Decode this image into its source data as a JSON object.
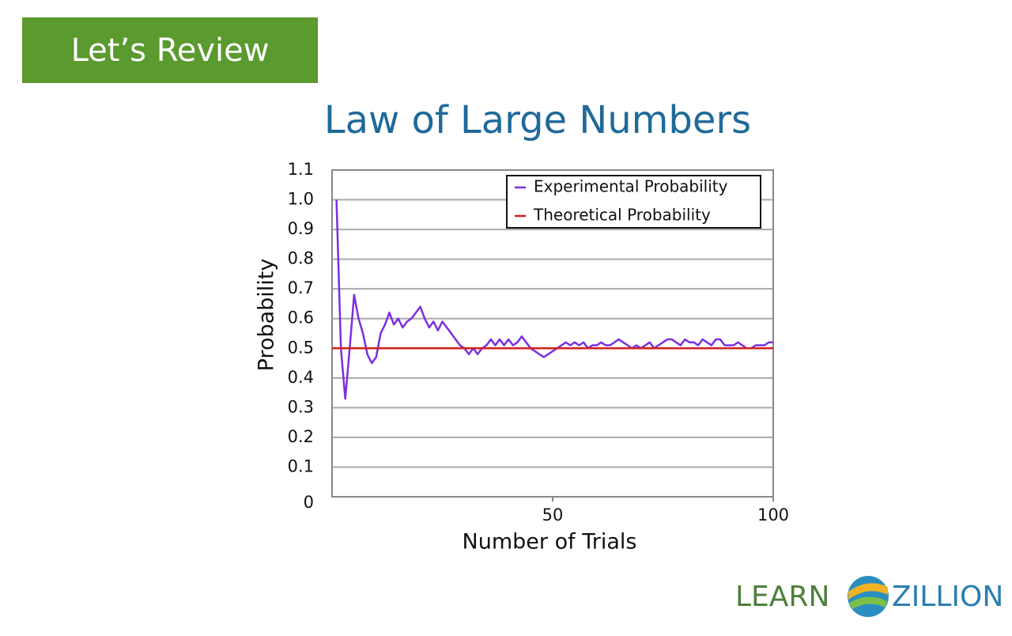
{
  "badge": "Let’s Review",
  "logo": {
    "left": "LEARN",
    "right": "ZILLION"
  },
  "chart_data": {
    "type": "line",
    "title": "Law of Large Numbers",
    "x_label": "Number of Trials",
    "y_label": "Probability",
    "xlim": [
      0,
      100
    ],
    "xticks": [
      50,
      100
    ],
    "ylim": [
      0,
      1.1
    ],
    "yticks": [
      0,
      0.1,
      0.2,
      0.3,
      0.4,
      0.5,
      0.6,
      0.7,
      0.8,
      0.9,
      {
        "value": 1,
        "label": "1.0"
      },
      1.1
    ],
    "grid": true,
    "legend": "top-right",
    "series": [
      {
        "name": "Experimental Probability",
        "color": "#7b2fe0",
        "x": [
          1,
          2,
          3,
          4,
          5,
          6,
          7,
          8,
          9,
          10,
          11,
          12,
          13,
          14,
          15,
          16,
          17,
          18,
          19,
          20,
          21,
          22,
          23,
          24,
          25,
          26,
          27,
          28,
          29,
          30,
          31,
          32,
          33,
          34,
          35,
          36,
          37,
          38,
          39,
          40,
          41,
          42,
          43,
          44,
          45,
          46,
          47,
          48,
          49,
          50,
          51,
          52,
          53,
          54,
          55,
          56,
          57,
          58,
          59,
          60,
          61,
          62,
          63,
          64,
          65,
          66,
          67,
          68,
          69,
          70,
          71,
          72,
          73,
          74,
          75,
          76,
          77,
          78,
          79,
          80,
          81,
          82,
          83,
          84,
          85,
          86,
          87,
          88,
          89,
          90,
          91,
          92,
          93,
          94,
          95,
          96,
          97,
          98,
          99,
          100
        ],
        "values": [
          1.0,
          0.5,
          0.33,
          0.5,
          0.68,
          0.6,
          0.55,
          0.48,
          0.45,
          0.47,
          0.55,
          0.58,
          0.62,
          0.58,
          0.6,
          0.57,
          0.59,
          0.6,
          0.62,
          0.64,
          0.6,
          0.57,
          0.59,
          0.56,
          0.59,
          0.57,
          0.55,
          0.53,
          0.51,
          0.5,
          0.48,
          0.5,
          0.48,
          0.5,
          0.51,
          0.53,
          0.51,
          0.53,
          0.51,
          0.53,
          0.51,
          0.52,
          0.54,
          0.52,
          0.5,
          0.49,
          0.48,
          0.47,
          0.48,
          0.49,
          0.5,
          0.51,
          0.52,
          0.51,
          0.52,
          0.51,
          0.52,
          0.5,
          0.51,
          0.51,
          0.52,
          0.51,
          0.51,
          0.52,
          0.53,
          0.52,
          0.51,
          0.5,
          0.51,
          0.5,
          0.51,
          0.52,
          0.5,
          0.51,
          0.52,
          0.53,
          0.53,
          0.52,
          0.51,
          0.53,
          0.52,
          0.52,
          0.51,
          0.53,
          0.52,
          0.51,
          0.53,
          0.53,
          0.51,
          0.51,
          0.51,
          0.52,
          0.51,
          0.5,
          0.5,
          0.51,
          0.51,
          0.51,
          0.52,
          0.52
        ]
      },
      {
        "name": "Theoretical Probability",
        "color": "#d42020",
        "x": [
          0,
          100
        ],
        "values": [
          0.5,
          0.5
        ]
      }
    ]
  }
}
